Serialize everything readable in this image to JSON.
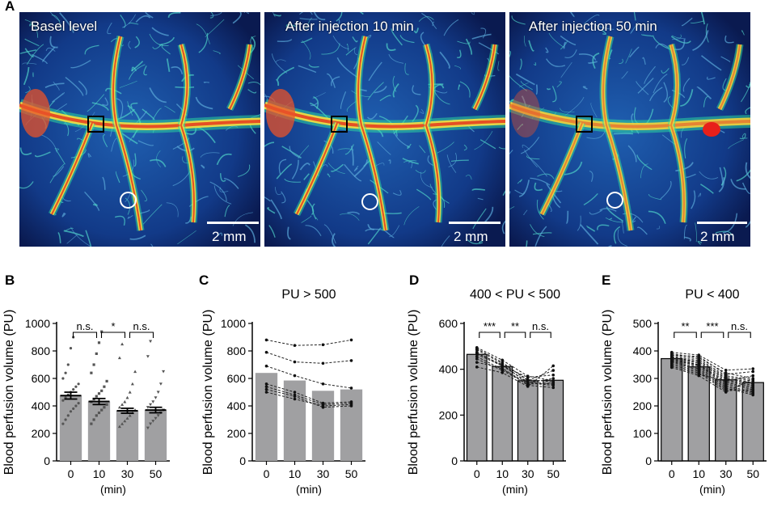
{
  "panel_letters": {
    "a": "A",
    "b": "B",
    "c": "C",
    "d": "D",
    "e": "E"
  },
  "images": [
    {
      "title": "Basel level",
      "scale_label": "2 mm"
    },
    {
      "title": "After injection 10 min",
      "scale_label": "2 mm"
    },
    {
      "title": "After injection 50 min",
      "scale_label": "2 mm"
    }
  ],
  "colors": {
    "bar": "#a0a0a2",
    "axis": "#000000",
    "dash": "#222222",
    "bg_dark": "#0a1a50"
  },
  "chart_data": [
    {
      "id": "B",
      "type": "bar",
      "title": "",
      "categories": [
        "0",
        "10",
        "30",
        "50"
      ],
      "values": [
        475,
        432,
        365,
        370
      ],
      "errors": [
        25,
        22,
        18,
        20
      ],
      "ylabel": "Blood perfusion volume (PU)",
      "xlabel": "(min)",
      "ylim": [
        0,
        1000
      ],
      "yticks": [
        "0",
        "200",
        "400",
        "600",
        "800",
        "1000"
      ],
      "significance": [
        {
          "from": 0,
          "to": 1,
          "label": "n.s."
        },
        {
          "from": 1,
          "to": 2,
          "label": "*"
        },
        {
          "from": 2,
          "to": 3,
          "label": "n.s."
        }
      ],
      "points": [
        [
          270,
          300,
          330,
          360,
          380,
          400,
          420,
          440,
          460,
          480,
          500,
          520,
          540,
          560,
          600,
          640,
          700,
          820,
          900
        ],
        [
          270,
          300,
          330,
          350,
          370,
          390,
          410,
          430,
          450,
          470,
          490,
          510,
          540,
          580,
          640,
          700,
          780,
          860,
          940
        ],
        [
          250,
          270,
          290,
          310,
          330,
          350,
          370,
          390,
          410,
          430,
          460,
          500,
          560,
          650,
          750,
          850
        ],
        [
          240,
          270,
          290,
          310,
          330,
          350,
          370,
          390,
          410,
          430,
          460,
          500,
          560,
          650,
          760,
          870
        ]
      ]
    },
    {
      "id": "C",
      "type": "bar",
      "title": "PU > 500",
      "categories": [
        "0",
        "10",
        "30",
        "50"
      ],
      "values": [
        640,
        585,
        510,
        520
      ],
      "ylabel": "Blood perfusion volume (PU)",
      "xlabel": "(min)",
      "ylim": [
        0,
        1000
      ],
      "yticks": [
        "0",
        "200",
        "400",
        "600",
        "800",
        "1000"
      ],
      "lines": [
        [
          880,
          840,
          845,
          880
        ],
        [
          790,
          720,
          710,
          730
        ],
        [
          690,
          620,
          560,
          530
        ],
        [
          560,
          500,
          420,
          430
        ],
        [
          540,
          480,
          410,
          420
        ],
        [
          520,
          470,
          390,
          400
        ],
        [
          500,
          450,
          400,
          410
        ]
      ]
    },
    {
      "id": "D",
      "type": "bar",
      "title": "400 < PU < 500",
      "categories": [
        "0",
        "10",
        "30",
        "50"
      ],
      "values": [
        465,
        412,
        350,
        352
      ],
      "ylabel": "Blood perfusion volume (PU)",
      "xlabel": "(min)",
      "ylim": [
        0,
        600
      ],
      "yticks": [
        "0",
        "200",
        "400",
        "600"
      ],
      "significance": [
        {
          "from": 0,
          "to": 1,
          "label": "***"
        },
        {
          "from": 1,
          "to": 2,
          "label": "**"
        },
        {
          "from": 2,
          "to": 3,
          "label": "n.s."
        }
      ],
      "lines": [
        [
          495,
          440,
          370,
          350
        ],
        [
          485,
          425,
          355,
          345
        ],
        [
          475,
          415,
          365,
          375
        ],
        [
          465,
          415,
          345,
          335
        ],
        [
          455,
          400,
          340,
          330
        ],
        [
          445,
          395,
          335,
          340
        ],
        [
          430,
          405,
          330,
          320
        ],
        [
          410,
          385,
          325,
          415
        ],
        [
          490,
          430,
          350,
          395
        ],
        [
          470,
          420,
          340,
          360
        ]
      ]
    },
    {
      "id": "E",
      "type": "bar",
      "title": "PU < 400",
      "categories": [
        "0",
        "10",
        "30",
        "50"
      ],
      "values": [
        372,
        342,
        295,
        285
      ],
      "ylabel": "Blood perfusion volume (PU)",
      "xlabel": "(min)",
      "ylim": [
        0,
        500
      ],
      "yticks": [
        "0",
        "100",
        "200",
        "300",
        "400",
        "500"
      ],
      "significance": [
        {
          "from": 0,
          "to": 1,
          "label": "**"
        },
        {
          "from": 1,
          "to": 2,
          "label": "***"
        },
        {
          "from": 2,
          "to": 3,
          "label": "n.s."
        }
      ],
      "lines": [
        [
          395,
          385,
          330,
          335
        ],
        [
          390,
          375,
          320,
          300
        ],
        [
          385,
          370,
          310,
          295
        ],
        [
          380,
          365,
          305,
          290
        ],
        [
          378,
          360,
          300,
          280
        ],
        [
          375,
          355,
          295,
          275
        ],
        [
          372,
          350,
          290,
          270
        ],
        [
          370,
          348,
          285,
          265
        ],
        [
          368,
          345,
          280,
          260
        ],
        [
          365,
          340,
          275,
          250
        ],
        [
          362,
          335,
          270,
          245
        ],
        [
          360,
          330,
          265,
          240
        ],
        [
          355,
          325,
          260,
          255
        ],
        [
          350,
          320,
          255,
          260
        ],
        [
          345,
          315,
          290,
          310
        ],
        [
          340,
          310,
          250,
          300
        ],
        [
          385,
          380,
          315,
          325
        ],
        [
          375,
          360,
          300,
          285
        ]
      ]
    }
  ]
}
